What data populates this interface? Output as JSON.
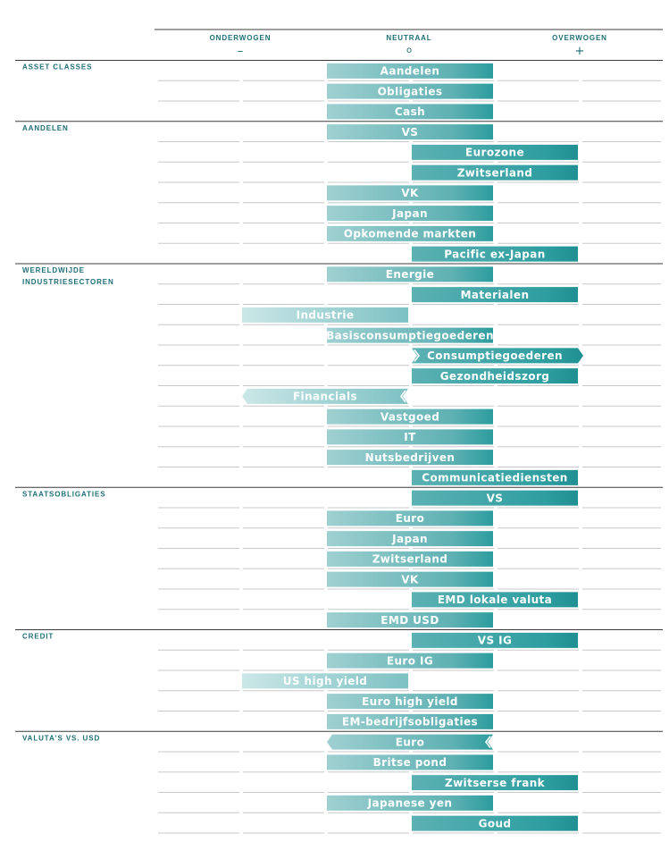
{
  "chart_data": {
    "type": "diverging-bar",
    "columns": [
      {
        "label": "ONDERWOGEN",
        "symbol": "–"
      },
      {
        "label": "NEUTRAAL",
        "symbol": "o"
      },
      {
        "label": "OVERWOGEN",
        "symbol": "+"
      }
    ],
    "scale": [
      -2,
      -1,
      0,
      1,
      2
    ],
    "sections": [
      {
        "title": [
          "ASSET CLASSES"
        ],
        "rows": [
          {
            "label": "Aandelen",
            "value": 0,
            "change": null
          },
          {
            "label": "Obligaties",
            "value": 0,
            "change": null
          },
          {
            "label": "Cash",
            "value": 0,
            "change": null
          }
        ]
      },
      {
        "title": [
          "AANDELEN"
        ],
        "rows": [
          {
            "label": "VS",
            "value": 0,
            "change": null
          },
          {
            "label": "Eurozone",
            "value": 1,
            "change": null
          },
          {
            "label": "Zwitserland",
            "value": 1,
            "change": null
          },
          {
            "label": "VK",
            "value": 0,
            "change": null
          },
          {
            "label": "Japan",
            "value": 0,
            "change": null
          },
          {
            "label": "Opkomende markten",
            "value": 0,
            "change": null
          },
          {
            "label": "Pacific ex-Japan",
            "value": 1,
            "change": null
          }
        ]
      },
      {
        "title": [
          "WERELDWIJDE",
          "INDUSTRIESECTOREN"
        ],
        "rows": [
          {
            "label": "Energie",
            "value": 0,
            "change": null
          },
          {
            "label": "Materialen",
            "value": 1,
            "change": null
          },
          {
            "label": "Industrie",
            "value": -1,
            "change": null
          },
          {
            "label": "Basisconsumptiegoederen",
            "value": 0,
            "change": null
          },
          {
            "label": "Consumptiegoederen",
            "value": 1,
            "change": "up"
          },
          {
            "label": "Gezondheidszorg",
            "value": 1,
            "change": null
          },
          {
            "label": "Financials",
            "value": -1,
            "change": "down"
          },
          {
            "label": "Vastgoed",
            "value": 0,
            "change": null
          },
          {
            "label": "IT",
            "value": 0,
            "change": null
          },
          {
            "label": "Nutsbedrijven",
            "value": 0,
            "change": null
          },
          {
            "label": "Communicatiediensten",
            "value": 1,
            "change": null
          }
        ]
      },
      {
        "title": [
          "STAATSOBLIGATIES"
        ],
        "rows": [
          {
            "label": "VS",
            "value": 1,
            "change": null
          },
          {
            "label": "Euro",
            "value": 0,
            "change": null
          },
          {
            "label": "Japan",
            "value": 0,
            "change": null
          },
          {
            "label": "Zwitserland",
            "value": 0,
            "change": null
          },
          {
            "label": "VK",
            "value": 0,
            "change": null
          },
          {
            "label": "EMD lokale valuta",
            "value": 1,
            "change": null
          },
          {
            "label": "EMD USD",
            "value": 0,
            "change": null
          }
        ]
      },
      {
        "title": [
          "CREDIT"
        ],
        "rows": [
          {
            "label": "VS IG",
            "value": 1,
            "change": null
          },
          {
            "label": "Euro IG",
            "value": 0,
            "change": null
          },
          {
            "label": "US high yield",
            "value": -1,
            "change": null
          },
          {
            "label": "Euro high yield",
            "value": 0,
            "change": null
          },
          {
            "label": "EM-bedrijfsobligaties",
            "value": 0,
            "change": null
          }
        ]
      },
      {
        "title": [
          "VALUTA'S VS. USD"
        ],
        "rows": [
          {
            "label": "Euro",
            "value": 0,
            "change": "down"
          },
          {
            "label": "Britse pond",
            "value": 0,
            "change": null
          },
          {
            "label": "Zwitserse frank",
            "value": 1,
            "change": null
          },
          {
            "label": "Japanese yen",
            "value": 0,
            "change": null
          },
          {
            "label": "Goud",
            "value": 1,
            "change": null
          }
        ]
      }
    ],
    "colors": {
      "text": "#1f6f77",
      "rule": "#3c3c3c",
      "grid": "#c8c8c8",
      "bar_light": "#a7d5d6",
      "bar_mid": "#74bcbe",
      "bar_dark": "#2a9a9c"
    }
  }
}
